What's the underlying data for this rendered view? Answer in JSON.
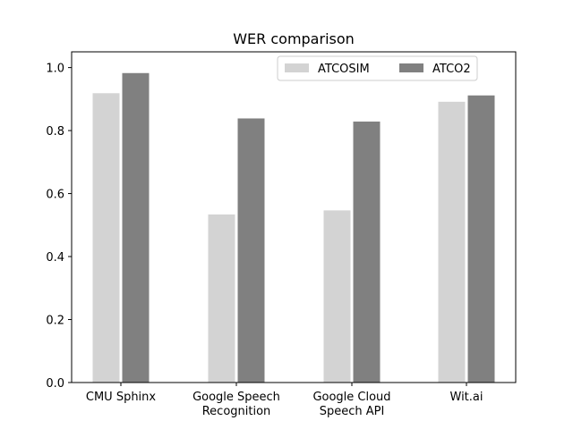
{
  "chart_data": {
    "type": "bar",
    "title": "WER comparison",
    "xlabel": "",
    "ylabel": "",
    "ylim": [
      0,
      1.05
    ],
    "yticks": [
      "0.0",
      "0.2",
      "0.4",
      "0.6",
      "0.8",
      "1.0"
    ],
    "categories": [
      [
        "CMU Sphinx"
      ],
      [
        "Google Speech",
        "Recognition"
      ],
      [
        "Google Cloud",
        "Speech API"
      ],
      [
        "Wit.ai"
      ]
    ],
    "series": [
      {
        "name": "ATCOSIM",
        "color": "#d3d3d3",
        "values": [
          0.92,
          0.535,
          0.548,
          0.893
        ]
      },
      {
        "name": "ATCO2",
        "color": "#808080",
        "values": [
          0.984,
          0.84,
          0.83,
          0.913
        ]
      }
    ],
    "legend": {
      "placement": "top-right",
      "columns": 2
    },
    "grid": false
  }
}
